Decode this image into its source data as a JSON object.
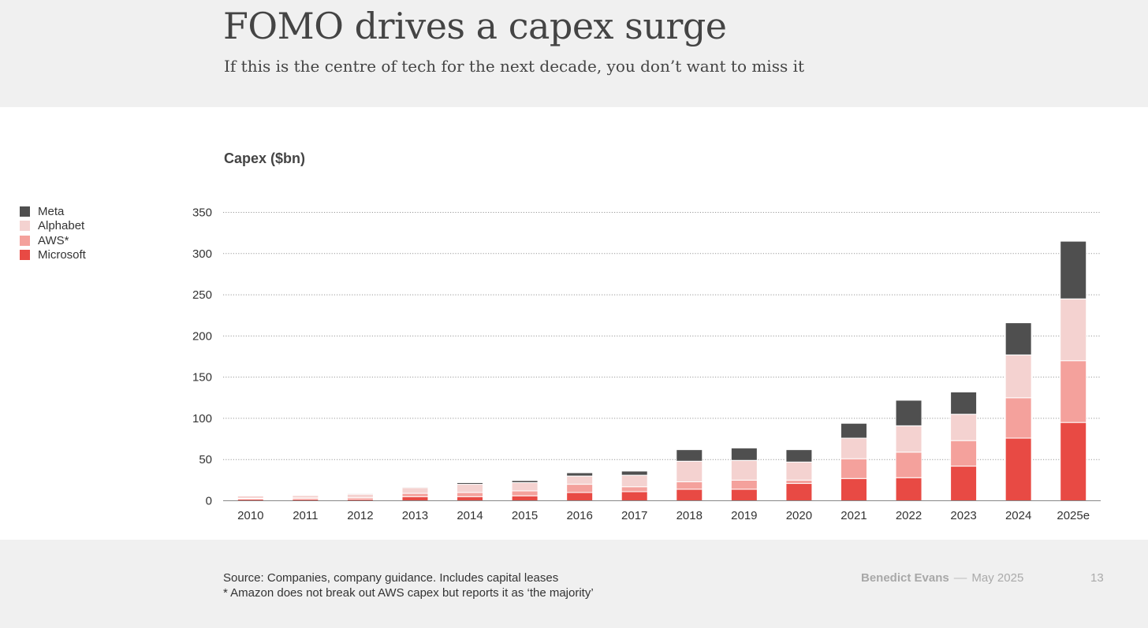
{
  "header": {
    "title": "FOMO drives a capex surge",
    "subtitle": "If this is the centre of tech for the next decade, you don’t want to miss it"
  },
  "footer": {
    "source_line1": "Source: Companies, company guidance. Includes capital leases",
    "source_line2": "* Amazon does not break out AWS capex but reports it as ‘the majority’",
    "author": "Benedict Evans",
    "separator": "––",
    "date": "May 2025",
    "page_number": "13"
  },
  "chart_data": {
    "type": "bar",
    "stacked": true,
    "ylabel": "Capex ($bn)",
    "ylim": [
      0,
      350
    ],
    "yticks": [
      0,
      50,
      100,
      150,
      200,
      250,
      300,
      350
    ],
    "grid": "horizontal dotted",
    "legend_position": "left",
    "categories": [
      "2010",
      "2011",
      "2012",
      "2013",
      "2014",
      "2015",
      "2016",
      "2017",
      "2018",
      "2019",
      "2020",
      "2021",
      "2022",
      "2023",
      "2024",
      "2025e"
    ],
    "series": [
      {
        "name": "Microsoft",
        "color": "#e84a44",
        "values": [
          2,
          2,
          2,
          5,
          5,
          6,
          10,
          11,
          14,
          14,
          21,
          27,
          28,
          42,
          76,
          95
        ]
      },
      {
        "name": "AWS*",
        "color": "#f4a19c",
        "values": [
          1,
          1.5,
          2,
          4,
          5,
          6,
          10,
          6,
          9,
          11,
          4,
          24,
          31,
          31,
          49,
          75
        ]
      },
      {
        "name": "Alphabet",
        "color": "#f4d2d0",
        "values": [
          3,
          3,
          4,
          7,
          10,
          10,
          10,
          14,
          25,
          24,
          22,
          25,
          32,
          32,
          52,
          75
        ]
      },
      {
        "name": "Meta",
        "color": "#4f4f4f",
        "values": [
          0.5,
          0.5,
          1,
          1,
          2,
          2.5,
          4,
          5,
          14,
          15,
          15,
          18,
          31,
          27,
          39,
          70
        ]
      }
    ]
  },
  "legend": [
    {
      "label": "Meta",
      "color": "#4f4f4f"
    },
    {
      "label": "Alphabet",
      "color": "#f4d2d0"
    },
    {
      "label": "AWS*",
      "color": "#f4a19c"
    },
    {
      "label": "Microsoft",
      "color": "#e84a44"
    }
  ]
}
